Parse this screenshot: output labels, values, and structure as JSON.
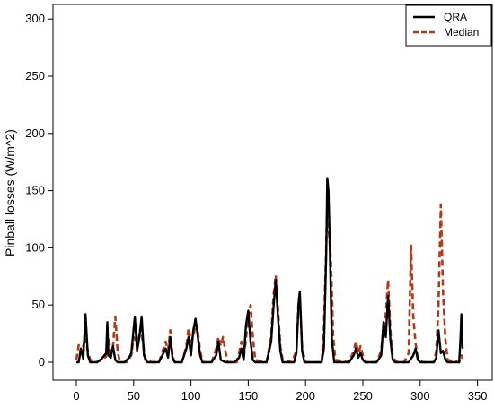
{
  "chart_data": {
    "type": "line",
    "title": "",
    "xlabel": "",
    "ylabel": "Pinball losses (W/m^2)",
    "xlim": [
      0,
      350
    ],
    "ylim": [
      0,
      300
    ],
    "x_ticks": [
      "0",
      "50",
      "100",
      "150",
      "200",
      "250",
      "300",
      "350"
    ],
    "y_ticks": [
      "0",
      "50",
      "100",
      "150",
      "200",
      "250",
      "300"
    ],
    "legend_position": "top-right",
    "series": [
      {
        "name": "QRA",
        "color": "#000000",
        "style": "solid",
        "points": [
          [
            0,
            0
          ],
          [
            2,
            0
          ],
          [
            4,
            12
          ],
          [
            6,
            3
          ],
          [
            8,
            42
          ],
          [
            10,
            6
          ],
          [
            12,
            0
          ],
          [
            18,
            0
          ],
          [
            22,
            3
          ],
          [
            26,
            8
          ],
          [
            27,
            35
          ],
          [
            28,
            6
          ],
          [
            30,
            4
          ],
          [
            32,
            14
          ],
          [
            34,
            2
          ],
          [
            36,
            0
          ],
          [
            42,
            0
          ],
          [
            46,
            4
          ],
          [
            48,
            8
          ],
          [
            51,
            40
          ],
          [
            53,
            10
          ],
          [
            55,
            22
          ],
          [
            57,
            40
          ],
          [
            59,
            6
          ],
          [
            62,
            0
          ],
          [
            72,
            0
          ],
          [
            76,
            8
          ],
          [
            78,
            12
          ],
          [
            80,
            4
          ],
          [
            82,
            22
          ],
          [
            84,
            3
          ],
          [
            86,
            0
          ],
          [
            92,
            0
          ],
          [
            96,
            12
          ],
          [
            98,
            22
          ],
          [
            100,
            6
          ],
          [
            102,
            28
          ],
          [
            104,
            38
          ],
          [
            106,
            22
          ],
          [
            108,
            6
          ],
          [
            110,
            0
          ],
          [
            118,
            0
          ],
          [
            122,
            6
          ],
          [
            124,
            18
          ],
          [
            126,
            2
          ],
          [
            130,
            0
          ],
          [
            138,
            0
          ],
          [
            142,
            4
          ],
          [
            144,
            12
          ],
          [
            146,
            2
          ],
          [
            148,
            32
          ],
          [
            150,
            45
          ],
          [
            152,
            18
          ],
          [
            154,
            2
          ],
          [
            156,
            0
          ],
          [
            166,
            0
          ],
          [
            170,
            18
          ],
          [
            172,
            48
          ],
          [
            174,
            72
          ],
          [
            176,
            38
          ],
          [
            178,
            10
          ],
          [
            180,
            0
          ],
          [
            190,
            0
          ],
          [
            192,
            8
          ],
          [
            194,
            52
          ],
          [
            195,
            62
          ],
          [
            197,
            10
          ],
          [
            199,
            0
          ],
          [
            214,
            0
          ],
          [
            216,
            12
          ],
          [
            218,
            95
          ],
          [
            219,
            161
          ],
          [
            220,
            150
          ],
          [
            221,
            110
          ],
          [
            222,
            60
          ],
          [
            223,
            20
          ],
          [
            225,
            0
          ],
          [
            238,
            0
          ],
          [
            242,
            6
          ],
          [
            244,
            12
          ],
          [
            246,
            4
          ],
          [
            248,
            8
          ],
          [
            250,
            2
          ],
          [
            252,
            0
          ],
          [
            262,
            0
          ],
          [
            266,
            6
          ],
          [
            268,
            35
          ],
          [
            270,
            22
          ],
          [
            272,
            58
          ],
          [
            274,
            20
          ],
          [
            276,
            2
          ],
          [
            278,
            0
          ],
          [
            290,
            0
          ],
          [
            294,
            6
          ],
          [
            296,
            12
          ],
          [
            298,
            2
          ],
          [
            300,
            0
          ],
          [
            312,
            0
          ],
          [
            314,
            4
          ],
          [
            316,
            28
          ],
          [
            318,
            8
          ],
          [
            320,
            10
          ],
          [
            322,
            2
          ],
          [
            324,
            0
          ],
          [
            334,
            0
          ],
          [
            335,
            18
          ],
          [
            336,
            42
          ],
          [
            337,
            12
          ]
        ]
      },
      {
        "name": "Median",
        "color": "#b03a1a",
        "style": "dashed",
        "points": [
          [
            0,
            2
          ],
          [
            2,
            15
          ],
          [
            4,
            8
          ],
          [
            6,
            14
          ],
          [
            8,
            22
          ],
          [
            10,
            10
          ],
          [
            12,
            2
          ],
          [
            18,
            0
          ],
          [
            22,
            2
          ],
          [
            26,
            5
          ],
          [
            28,
            20
          ],
          [
            30,
            8
          ],
          [
            32,
            14
          ],
          [
            34,
            40
          ],
          [
            36,
            10
          ],
          [
            38,
            0
          ],
          [
            44,
            0
          ],
          [
            48,
            6
          ],
          [
            50,
            22
          ],
          [
            52,
            18
          ],
          [
            54,
            20
          ],
          [
            56,
            30
          ],
          [
            58,
            18
          ],
          [
            60,
            2
          ],
          [
            66,
            0
          ],
          [
            72,
            0
          ],
          [
            76,
            12
          ],
          [
            78,
            18
          ],
          [
            80,
            10
          ],
          [
            82,
            28
          ],
          [
            84,
            5
          ],
          [
            86,
            0
          ],
          [
            92,
            0
          ],
          [
            96,
            14
          ],
          [
            98,
            30
          ],
          [
            100,
            18
          ],
          [
            102,
            22
          ],
          [
            104,
            34
          ],
          [
            106,
            26
          ],
          [
            108,
            10
          ],
          [
            110,
            0
          ],
          [
            118,
            0
          ],
          [
            122,
            12
          ],
          [
            124,
            22
          ],
          [
            126,
            14
          ],
          [
            128,
            22
          ],
          [
            130,
            10
          ],
          [
            132,
            0
          ],
          [
            140,
            0
          ],
          [
            142,
            8
          ],
          [
            144,
            18
          ],
          [
            146,
            4
          ],
          [
            148,
            20
          ],
          [
            150,
            40
          ],
          [
            152,
            50
          ],
          [
            154,
            22
          ],
          [
            156,
            2
          ],
          [
            166,
            0
          ],
          [
            170,
            22
          ],
          [
            172,
            58
          ],
          [
            174,
            76
          ],
          [
            176,
            45
          ],
          [
            178,
            14
          ],
          [
            180,
            2
          ],
          [
            188,
            0
          ],
          [
            192,
            10
          ],
          [
            194,
            55
          ],
          [
            195,
            58
          ],
          [
            197,
            12
          ],
          [
            200,
            0
          ],
          [
            214,
            0
          ],
          [
            216,
            30
          ],
          [
            218,
            100
          ],
          [
            219,
            140
          ],
          [
            220,
            120
          ],
          [
            221,
            105
          ],
          [
            222,
            90
          ],
          [
            223,
            60
          ],
          [
            224,
            25
          ],
          [
            226,
            2
          ],
          [
            238,
            0
          ],
          [
            242,
            10
          ],
          [
            244,
            18
          ],
          [
            246,
            8
          ],
          [
            248,
            14
          ],
          [
            250,
            6
          ],
          [
            252,
            0
          ],
          [
            262,
            0
          ],
          [
            266,
            10
          ],
          [
            268,
            30
          ],
          [
            270,
            42
          ],
          [
            272,
            72
          ],
          [
            274,
            28
          ],
          [
            276,
            4
          ],
          [
            280,
            0
          ],
          [
            286,
            0
          ],
          [
            290,
            8
          ],
          [
            292,
            102
          ],
          [
            294,
            40
          ],
          [
            296,
            16
          ],
          [
            298,
            4
          ],
          [
            302,
            0
          ],
          [
            312,
            0
          ],
          [
            314,
            10
          ],
          [
            316,
            50
          ],
          [
            318,
            138
          ],
          [
            320,
            60
          ],
          [
            322,
            20
          ],
          [
            324,
            2
          ],
          [
            334,
            0
          ],
          [
            336,
            6
          ],
          [
            337,
            3
          ]
        ]
      }
    ]
  }
}
